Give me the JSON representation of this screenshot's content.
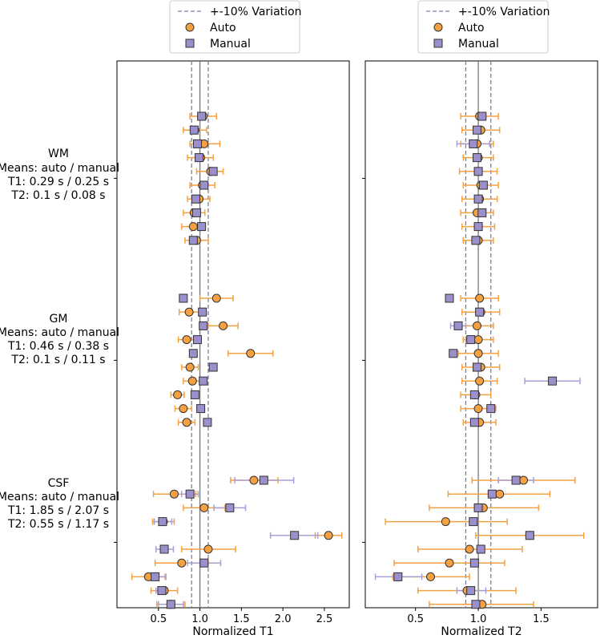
{
  "colors": {
    "auto": "#F5A142",
    "manual": "#9B8FCC",
    "auto_err": "#F5A142",
    "manual_err": "#A99FD6",
    "ref_line": "#777777",
    "var_line": "#7F7F9A"
  },
  "legend": {
    "variation_label": "+-10% Variation",
    "auto_label": "Auto",
    "manual_label": "Manual"
  },
  "groups": [
    {
      "name": "WM",
      "means_label": "Means: auto / manual",
      "t1_line": "T1: 0.29 s / 0.25 s",
      "t2_line": "T2: 0.1 s / 0.08 s"
    },
    {
      "name": "GM",
      "means_label": "Means: auto / manual",
      "t1_line": "T1: 0.46 s / 0.38 s",
      "t2_line": "T2: 0.1 s / 0.11 s"
    },
    {
      "name": "CSF",
      "means_label": "Means: auto / manual",
      "t1_line": "T1: 1.85 s / 2.07 s",
      "t2_line": "T2: 0.55 s / 1.17 s"
    }
  ],
  "chart_data": [
    {
      "type": "scatter",
      "xlabel": "Normalized T1",
      "xlim": [
        0.0,
        2.8
      ],
      "xticks": [
        "0.5",
        "1.0",
        "1.5",
        "2.0",
        "2.5"
      ],
      "xtick_values": [
        0.5,
        1.0,
        1.5,
        2.0,
        2.5
      ],
      "reference_line": 1.0,
      "variation_lines": [
        0.9,
        1.1
      ],
      "rows": [
        {
          "auto": 1.04,
          "auto_lo": 0.88,
          "auto_hi": 1.2,
          "manual": 1.02,
          "manual_lo": 0.98,
          "manual_hi": 1.06
        },
        {
          "auto": 0.94,
          "auto_lo": 0.8,
          "auto_hi": 1.08,
          "manual": 0.93,
          "manual_lo": 0.9,
          "manual_hi": 0.96
        },
        {
          "auto": 1.05,
          "auto_lo": 0.88,
          "auto_hi": 1.24,
          "manual": 0.97,
          "manual_lo": 0.94,
          "manual_hi": 1.0
        },
        {
          "auto": 1.01,
          "auto_lo": 0.85,
          "auto_hi": 1.16,
          "manual": 0.99,
          "manual_lo": 0.96,
          "manual_hi": 1.02
        },
        {
          "auto": 1.13,
          "auto_lo": 0.96,
          "auto_hi": 1.28,
          "manual": 1.16,
          "manual_lo": 1.12,
          "manual_hi": 1.2
        },
        {
          "auto": 1.03,
          "auto_lo": 0.88,
          "auto_hi": 1.18,
          "manual": 1.05,
          "manual_lo": 1.02,
          "manual_hi": 1.08
        },
        {
          "auto": 0.99,
          "auto_lo": 0.85,
          "auto_hi": 1.12,
          "manual": 0.95,
          "manual_lo": 0.92,
          "manual_hi": 0.98
        },
        {
          "auto": 0.93,
          "auto_lo": 0.8,
          "auto_hi": 1.06,
          "manual": 0.96,
          "manual_lo": 0.93,
          "manual_hi": 0.99
        },
        {
          "auto": 0.92,
          "auto_lo": 0.78,
          "auto_hi": 1.06,
          "manual": 1.02,
          "manual_lo": 0.99,
          "manual_hi": 1.05
        },
        {
          "auto": 0.96,
          "auto_lo": 0.82,
          "auto_hi": 1.1,
          "manual": 0.92,
          "manual_lo": 0.89,
          "manual_hi": 0.95
        },
        {
          "auto": 1.2,
          "auto_lo": 1.0,
          "auto_hi": 1.4,
          "manual": 0.8,
          "manual_lo": 0.78,
          "manual_hi": 0.82
        },
        {
          "auto": 0.87,
          "auto_lo": 0.75,
          "auto_hi": 0.99,
          "manual": 1.03,
          "manual_lo": 1.0,
          "manual_hi": 1.06
        },
        {
          "auto": 1.28,
          "auto_lo": 1.1,
          "auto_hi": 1.46,
          "manual": 1.04,
          "manual_lo": 1.01,
          "manual_hi": 1.07
        },
        {
          "auto": 0.84,
          "auto_lo": 0.74,
          "auto_hi": 0.94,
          "manual": 0.97,
          "manual_lo": 0.94,
          "manual_hi": 1.0
        },
        {
          "auto": 1.61,
          "auto_lo": 1.34,
          "auto_hi": 1.88,
          "manual": 0.92,
          "manual_lo": 0.89,
          "manual_hi": 0.95
        },
        {
          "auto": 0.88,
          "auto_lo": 0.78,
          "auto_hi": 0.98,
          "manual": 1.16,
          "manual_lo": 1.12,
          "manual_hi": 1.2
        },
        {
          "auto": 0.91,
          "auto_lo": 0.8,
          "auto_hi": 1.02,
          "manual": 1.04,
          "manual_lo": 1.01,
          "manual_hi": 1.07
        },
        {
          "auto": 0.73,
          "auto_lo": 0.65,
          "auto_hi": 0.81,
          "manual": 0.94,
          "manual_lo": 0.91,
          "manual_hi": 0.97
        },
        {
          "auto": 0.8,
          "auto_lo": 0.7,
          "auto_hi": 0.9,
          "manual": 1.01,
          "manual_lo": 0.98,
          "manual_hi": 1.04
        },
        {
          "auto": 0.84,
          "auto_lo": 0.74,
          "auto_hi": 0.94,
          "manual": 1.09,
          "manual_lo": 1.06,
          "manual_hi": 1.12
        },
        {
          "auto": 1.65,
          "auto_lo": 1.37,
          "auto_hi": 1.94,
          "manual": 1.77,
          "manual_lo": 1.42,
          "manual_hi": 2.13
        },
        {
          "auto": 0.69,
          "auto_lo": 0.44,
          "auto_hi": 0.95,
          "manual": 0.88,
          "manual_lo": 0.78,
          "manual_hi": 0.98
        },
        {
          "auto": 1.05,
          "auto_lo": 0.8,
          "auto_hi": 1.3,
          "manual": 1.36,
          "manual_lo": 1.17,
          "manual_hi": 1.55
        },
        {
          "auto": 0.56,
          "auto_lo": 0.43,
          "auto_hi": 0.69,
          "manual": 0.55,
          "manual_lo": 0.45,
          "manual_hi": 0.66
        },
        {
          "auto": 2.55,
          "auto_lo": 2.39,
          "auto_hi": 2.71,
          "manual": 2.14,
          "manual_lo": 1.85,
          "manual_hi": 2.42
        },
        {
          "auto": 1.1,
          "auto_lo": 0.78,
          "auto_hi": 1.43,
          "manual": 0.57,
          "manual_lo": 0.47,
          "manual_hi": 0.68
        },
        {
          "auto": 0.78,
          "auto_lo": 0.46,
          "auto_hi": 1.1,
          "manual": 1.05,
          "manual_lo": 0.85,
          "manual_hi": 1.25
        },
        {
          "auto": 0.38,
          "auto_lo": 0.18,
          "auto_hi": 0.58,
          "manual": 0.46,
          "manual_lo": 0.34,
          "manual_hi": 0.59
        },
        {
          "auto": 0.57,
          "auto_lo": 0.41,
          "auto_hi": 0.73,
          "manual": 0.54,
          "manual_lo": 0.47,
          "manual_hi": 0.61
        },
        {
          "auto": 0.65,
          "auto_lo": 0.48,
          "auto_hi": 0.82,
          "manual": 0.65,
          "manual_lo": 0.5,
          "manual_hi": 0.8
        }
      ]
    },
    {
      "type": "scatter",
      "xlabel": "Normalized T2",
      "xlim": [
        0.1,
        1.95
      ],
      "xticks": [
        "0.5",
        "1.0",
        "1.5"
      ],
      "xtick_values": [
        0.5,
        1.0,
        1.5
      ],
      "reference_line": 1.0,
      "variation_lines": [
        0.9,
        1.1
      ],
      "rows": [
        {
          "auto": 1.01,
          "auto_lo": 0.86,
          "auto_hi": 1.16,
          "manual": 1.03,
          "manual_lo": 1.0,
          "manual_hi": 1.06
        },
        {
          "auto": 1.02,
          "auto_lo": 0.87,
          "auto_hi": 1.17,
          "manual": 0.99,
          "manual_lo": 0.96,
          "manual_hi": 1.02
        },
        {
          "auto": 0.99,
          "auto_lo": 0.86,
          "auto_hi": 1.12,
          "manual": 0.96,
          "manual_lo": 0.83,
          "manual_hi": 1.09
        },
        {
          "auto": 1.0,
          "auto_lo": 0.88,
          "auto_hi": 1.12,
          "manual": 0.99,
          "manual_lo": 0.96,
          "manual_hi": 1.02
        },
        {
          "auto": 1.0,
          "auto_lo": 0.85,
          "auto_hi": 1.15,
          "manual": 1.0,
          "manual_lo": 0.97,
          "manual_hi": 1.03
        },
        {
          "auto": 1.02,
          "auto_lo": 0.88,
          "auto_hi": 1.16,
          "manual": 1.04,
          "manual_lo": 1.01,
          "manual_hi": 1.07
        },
        {
          "auto": 1.01,
          "auto_lo": 0.87,
          "auto_hi": 1.15,
          "manual": 1.0,
          "manual_lo": 0.97,
          "manual_hi": 1.03
        },
        {
          "auto": 0.99,
          "auto_lo": 0.86,
          "auto_hi": 1.12,
          "manual": 1.03,
          "manual_lo": 1.0,
          "manual_hi": 1.06
        },
        {
          "auto": 1.0,
          "auto_lo": 0.87,
          "auto_hi": 1.13,
          "manual": 1.0,
          "manual_lo": 0.97,
          "manual_hi": 1.03
        },
        {
          "auto": 1.0,
          "auto_lo": 0.88,
          "auto_hi": 1.12,
          "manual": 0.98,
          "manual_lo": 0.95,
          "manual_hi": 1.01
        },
        {
          "auto": 1.01,
          "auto_lo": 0.86,
          "auto_hi": 1.16,
          "manual": 0.77,
          "manual_lo": 0.75,
          "manual_hi": 0.79
        },
        {
          "auto": 1.02,
          "auto_lo": 0.87,
          "auto_hi": 1.17,
          "manual": 1.01,
          "manual_lo": 0.98,
          "manual_hi": 1.04
        },
        {
          "auto": 0.99,
          "auto_lo": 0.86,
          "auto_hi": 1.12,
          "manual": 0.84,
          "manual_lo": 0.78,
          "manual_hi": 0.9
        },
        {
          "auto": 1.0,
          "auto_lo": 0.88,
          "auto_hi": 1.12,
          "manual": 0.94,
          "manual_lo": 0.9,
          "manual_hi": 0.98
        },
        {
          "auto": 1.0,
          "auto_lo": 0.84,
          "auto_hi": 1.16,
          "manual": 0.8,
          "manual_lo": 0.78,
          "manual_hi": 0.82
        },
        {
          "auto": 1.02,
          "auto_lo": 0.87,
          "auto_hi": 1.17,
          "manual": 0.99,
          "manual_lo": 0.96,
          "manual_hi": 1.02
        },
        {
          "auto": 1.01,
          "auto_lo": 0.87,
          "auto_hi": 1.15,
          "manual": 1.59,
          "manual_lo": 1.37,
          "manual_hi": 1.81
        },
        {
          "auto": 0.98,
          "auto_lo": 0.86,
          "auto_hi": 1.1,
          "manual": 0.97,
          "manual_lo": 0.94,
          "manual_hi": 1.0
        },
        {
          "auto": 1.0,
          "auto_lo": 0.86,
          "auto_hi": 1.14,
          "manual": 1.1,
          "manual_lo": 1.07,
          "manual_hi": 1.13
        },
        {
          "auto": 1.01,
          "auto_lo": 0.88,
          "auto_hi": 1.14,
          "manual": 0.97,
          "manual_lo": 0.94,
          "manual_hi": 1.0
        },
        {
          "auto": 1.36,
          "auto_lo": 0.95,
          "auto_hi": 1.77,
          "manual": 1.3,
          "manual_lo": 1.16,
          "manual_hi": 1.44
        },
        {
          "auto": 1.17,
          "auto_lo": 0.76,
          "auto_hi": 1.57,
          "manual": 1.11,
          "manual_lo": 1.08,
          "manual_hi": 1.14
        },
        {
          "auto": 1.04,
          "auto_lo": 0.61,
          "auto_hi": 1.48,
          "manual": 1.0,
          "manual_lo": 0.97,
          "manual_hi": 1.03
        },
        {
          "auto": 0.74,
          "auto_lo": 0.26,
          "auto_hi": 1.23,
          "manual": 0.96,
          "manual_lo": 0.93,
          "manual_hi": 0.99
        },
        {
          "auto": 1.41,
          "auto_lo": 0.98,
          "auto_hi": 1.84,
          "manual": 1.41,
          "manual_lo": 1.38,
          "manual_hi": 1.44
        },
        {
          "auto": 0.93,
          "auto_lo": 0.52,
          "auto_hi": 1.35,
          "manual": 1.02,
          "manual_lo": 0.99,
          "manual_hi": 1.05
        },
        {
          "auto": 0.77,
          "auto_lo": 0.33,
          "auto_hi": 1.21,
          "manual": 0.97,
          "manual_lo": 0.94,
          "manual_hi": 1.0
        },
        {
          "auto": 0.62,
          "auto_lo": 0.32,
          "auto_hi": 0.93,
          "manual": 0.36,
          "manual_lo": 0.18,
          "manual_hi": 0.55
        },
        {
          "auto": 0.91,
          "auto_lo": 0.52,
          "auto_hi": 1.3,
          "manual": 0.94,
          "manual_lo": 0.83,
          "manual_hi": 1.06
        },
        {
          "auto": 1.03,
          "auto_lo": 0.61,
          "auto_hi": 1.44,
          "manual": 0.98,
          "manual_lo": 0.95,
          "manual_hi": 1.01
        }
      ]
    }
  ]
}
